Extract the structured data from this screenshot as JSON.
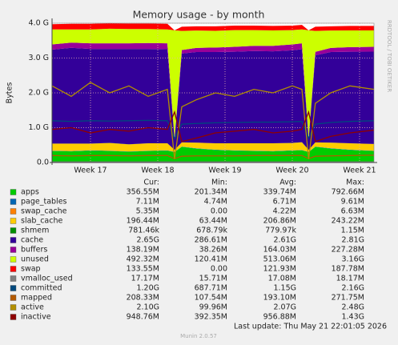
{
  "chart_data": {
    "type": "area",
    "title": "Memory usage - by month",
    "y_label": "Bytes",
    "side_label": "RRDTOOL / TOBI OETIKER",
    "x": [
      0,
      2,
      4,
      6,
      8,
      10,
      12,
      12.75,
      13.5,
      15,
      17,
      19,
      21,
      23,
      25,
      26,
      26.7,
      27.4,
      29,
      31,
      33.5
    ],
    "xlim": [
      0,
      33.5
    ],
    "xticks": [
      {
        "value": 4,
        "label": "Week 17"
      },
      {
        "value": 11,
        "label": "Week 18"
      },
      {
        "value": 18,
        "label": "Week 19"
      },
      {
        "value": 25,
        "label": "Week 20"
      },
      {
        "value": 32,
        "label": "Week 21"
      }
    ],
    "ylim": [
      0,
      4
    ],
    "yticks": [
      {
        "value": 0,
        "label": "0.0"
      },
      {
        "value": 1,
        "label": "1.0 G"
      },
      {
        "value": 2,
        "label": "2.0 G"
      },
      {
        "value": 3,
        "label": "3.0 G"
      },
      {
        "value": 4,
        "label": "4.0 G"
      }
    ],
    "grid": true,
    "legend_columns": [
      "Cur:",
      "Min:",
      "Avg:",
      "Max:"
    ],
    "series": [
      {
        "name": "apps",
        "color": "#00cc00",
        "style": "area",
        "stats": [
          "356.55M",
          "201.34M",
          "339.74M",
          "792.66M"
        ],
        "values": [
          0.33,
          0.32,
          0.34,
          0.33,
          0.31,
          0.33,
          0.34,
          0.3,
          0.45,
          0.4,
          0.36,
          0.34,
          0.33,
          0.32,
          0.34,
          0.35,
          0.3,
          0.45,
          0.4,
          0.36,
          0.33
        ]
      },
      {
        "name": "page_tables",
        "color": "#0066b3",
        "style": "area",
        "stats": [
          "7.11M",
          "4.74M",
          "6.71M",
          "9.61M"
        ],
        "values": [
          0.007,
          0.007,
          0.007,
          0.007,
          0.007,
          0.007,
          0.007,
          0.005,
          0.006,
          0.007,
          0.007,
          0.007,
          0.007,
          0.007,
          0.007,
          0.007,
          0.005,
          0.006,
          0.007,
          0.007,
          0.007
        ]
      },
      {
        "name": "swap_cache",
        "color": "#ff8000",
        "style": "area",
        "stats": [
          "5.35M",
          "0.00",
          "4.22M",
          "6.63M"
        ],
        "values": [
          0.004,
          0.004,
          0.004,
          0.004,
          0.004,
          0.004,
          0.004,
          0,
          0.002,
          0.003,
          0.004,
          0.004,
          0.004,
          0.004,
          0.004,
          0.004,
          0,
          0.002,
          0.003,
          0.004,
          0.005
        ]
      },
      {
        "name": "slab_cache",
        "color": "#ffcc00",
        "style": "area",
        "stats": [
          "196.44M",
          "63.44M",
          "206.86M",
          "243.22M"
        ],
        "values": [
          0.2,
          0.21,
          0.19,
          0.22,
          0.2,
          0.21,
          0.2,
          0.06,
          0.12,
          0.16,
          0.18,
          0.2,
          0.21,
          0.22,
          0.21,
          0.22,
          0.06,
          0.12,
          0.16,
          0.18,
          0.19
        ]
      },
      {
        "name": "shmem",
        "color": "#008f00",
        "style": "area",
        "stats": [
          "781.46k",
          "678.79k",
          "779.97k",
          "1.15M"
        ],
        "values": [
          0.001,
          0.001,
          0.001,
          0.001,
          0.001,
          0.001,
          0.001,
          0.001,
          0.001,
          0.001,
          0.001,
          0.001,
          0.001,
          0.001,
          0.001,
          0.001,
          0.001,
          0.001,
          0.001,
          0.001,
          0.001
        ]
      },
      {
        "name": "cache",
        "color": "#330099",
        "style": "area",
        "stats": [
          "2.65G",
          "286.61M",
          "2.61G",
          "2.81G"
        ],
        "values": [
          2.7,
          2.75,
          2.72,
          2.7,
          2.74,
          2.71,
          2.7,
          0.29,
          2.55,
          2.6,
          2.62,
          2.63,
          2.65,
          2.64,
          2.66,
          2.67,
          0.29,
          2.5,
          2.6,
          2.63,
          2.65
        ]
      },
      {
        "name": "buffers",
        "color": "#990099",
        "style": "area",
        "stats": [
          "138.19M",
          "38.26M",
          "164.03M",
          "227.28M"
        ],
        "values": [
          0.15,
          0.15,
          0.16,
          0.16,
          0.16,
          0.17,
          0.17,
          0.04,
          0.1,
          0.12,
          0.13,
          0.14,
          0.15,
          0.16,
          0.17,
          0.17,
          0.04,
          0.1,
          0.12,
          0.13,
          0.14
        ]
      },
      {
        "name": "unused",
        "color": "#ccff00",
        "style": "area",
        "stats": [
          "492.32M",
          "120.41M",
          "513.06M",
          "3.16G"
        ],
        "values": [
          0.43,
          0.38,
          0.4,
          0.42,
          0.41,
          0.4,
          0.4,
          3.1,
          0.55,
          0.5,
          0.48,
          0.48,
          0.45,
          0.44,
          0.41,
          0.4,
          3.1,
          0.6,
          0.5,
          0.48,
          0.47
        ]
      },
      {
        "name": "swap",
        "color": "#ff0000",
        "style": "area",
        "stats": [
          "133.55M",
          "0.00",
          "121.93M",
          "187.78M"
        ],
        "values": [
          0.15,
          0.16,
          0.16,
          0.16,
          0.16,
          0.16,
          0.16,
          0,
          0.12,
          0.12,
          0.13,
          0.13,
          0.13,
          0.13,
          0.13,
          0.13,
          0,
          0.12,
          0.12,
          0.13,
          0.13
        ]
      },
      {
        "name": "vmalloc_used",
        "color": "#808080",
        "style": "line",
        "stats": [
          "17.17M",
          "15.71M",
          "17.08M",
          "18.17M"
        ],
        "values": [
          0.017,
          0.017,
          0.017,
          0.017,
          0.017,
          0.017,
          0.017,
          0.016,
          0.017,
          0.017,
          0.017,
          0.017,
          0.017,
          0.017,
          0.017,
          0.017,
          0.016,
          0.017,
          0.017,
          0.017,
          0.017
        ]
      },
      {
        "name": "committed",
        "color": "#00487d",
        "style": "line",
        "stats": [
          "1.20G",
          "687.71M",
          "1.15G",
          "2.16G"
        ],
        "values": [
          1.2,
          1.18,
          1.2,
          1.19,
          1.2,
          1.21,
          1.2,
          0.69,
          1.1,
          1.12,
          1.14,
          1.15,
          1.16,
          1.16,
          1.17,
          1.18,
          0.7,
          1.1,
          1.15,
          1.18,
          1.2
        ]
      },
      {
        "name": "mapped",
        "color": "#b35a00",
        "style": "line",
        "stats": [
          "208.33M",
          "107.54M",
          "193.10M",
          "271.75M"
        ],
        "values": [
          0.2,
          0.19,
          0.2,
          0.2,
          0.19,
          0.2,
          0.2,
          0.11,
          0.18,
          0.19,
          0.19,
          0.19,
          0.2,
          0.2,
          0.2,
          0.2,
          0.11,
          0.18,
          0.19,
          0.2,
          0.21
        ]
      },
      {
        "name": "active",
        "color": "#b38f00",
        "style": "line",
        "stats": [
          "2.10G",
          "99.96M",
          "2.07G",
          "2.48G"
        ],
        "values": [
          2.2,
          1.9,
          2.3,
          2.0,
          2.2,
          1.9,
          2.1,
          0.1,
          1.6,
          1.8,
          2.0,
          1.9,
          2.1,
          2.0,
          2.2,
          2.1,
          0.1,
          1.7,
          2.0,
          2.2,
          2.1
        ]
      },
      {
        "name": "inactive",
        "color": "#8f0000",
        "style": "line",
        "stats": [
          "948.76M",
          "392.35M",
          "956.88M",
          "1.43G"
        ],
        "values": [
          0.95,
          1.0,
          0.85,
          0.95,
          0.9,
          1.0,
          0.95,
          1.45,
          0.6,
          0.7,
          0.85,
          0.9,
          0.95,
          0.85,
          0.9,
          0.95,
          1.45,
          0.6,
          0.75,
          0.85,
          0.93
        ]
      }
    ],
    "last_update": "Last update: Thu May 21 22:01:05 2026",
    "footer": "Munin 2.0.57"
  }
}
